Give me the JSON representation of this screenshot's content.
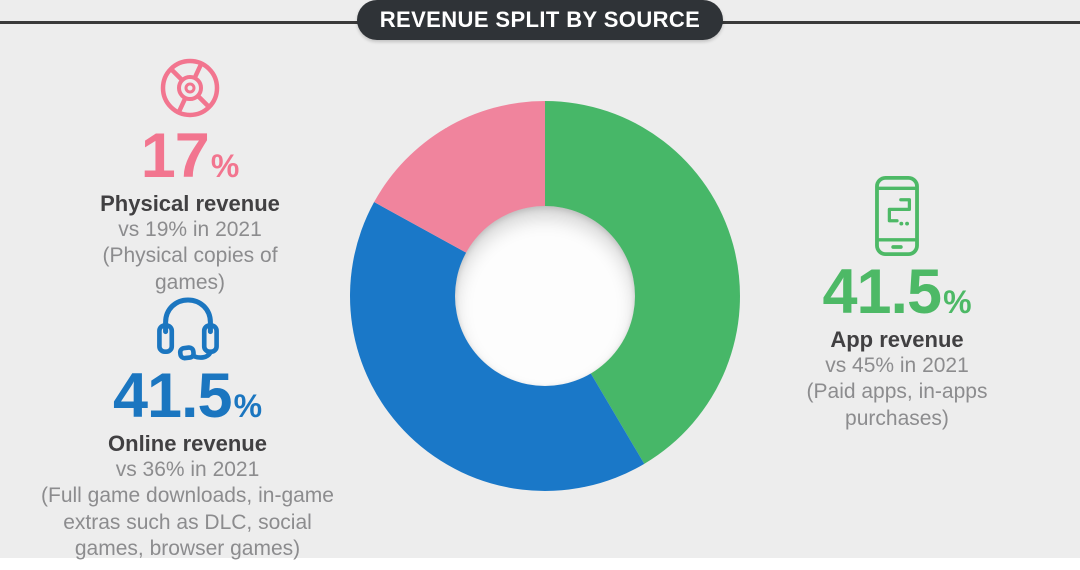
{
  "title": "REVENUE SPLIT BY SOURCE",
  "colors": {
    "bg": "#EDEDED",
    "strip": "#FFFFFF",
    "band": "#2F3337",
    "rule": "#3A3A3A",
    "pink": "#F2758F",
    "blue": "#1B76C0",
    "green": "#4DB966",
    "heading": "#414042",
    "muted": "#8C8C8E",
    "hole": "#FDFDFD"
  },
  "panels": {
    "physical": {
      "icon": "cd-disc-icon",
      "value": "17",
      "unit": "%",
      "heading": "Physical revenue",
      "comparison": "vs 19% in 2021",
      "caption": "(Physical copies of\ngames)"
    },
    "online": {
      "icon": "headset-icon",
      "value": "41.5",
      "unit": "%",
      "heading": "Online revenue",
      "comparison": "vs 36% in 2021",
      "caption": "(Full game downloads, in-game\nextras such as DLC, social\ngames, browser games)"
    },
    "app": {
      "icon": "smartphone-icon",
      "value": "41.5",
      "unit": "%",
      "heading": "App revenue",
      "comparison": "vs 45% in 2021",
      "caption": "(Paid apps, in-apps\npurchases)"
    }
  },
  "chart_data": {
    "type": "pie",
    "variant": "donut",
    "title": "REVENUE SPLIT BY SOURCE",
    "labels": [
      "App revenue",
      "Online revenue",
      "Physical revenue"
    ],
    "values": [
      41.5,
      41.5,
      17
    ],
    "units": "%",
    "colors": [
      "#47B768",
      "#1A78C8",
      "#F0849D"
    ],
    "start_angle_deg": 0,
    "direction": "clockwise",
    "inner_radius_ratio": 0.465,
    "legend_position": "none"
  }
}
